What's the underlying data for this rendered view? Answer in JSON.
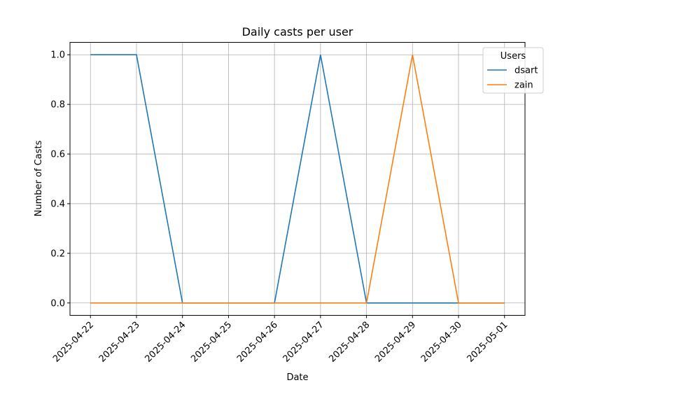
{
  "chart_data": {
    "type": "line",
    "title": "Daily casts per user",
    "xlabel": "Date",
    "ylabel": "Number of Casts",
    "x": [
      "2025-04-22",
      "2025-04-23",
      "2025-04-24",
      "2025-04-25",
      "2025-04-26",
      "2025-04-27",
      "2025-04-28",
      "2025-04-29",
      "2025-04-30",
      "2025-05-01"
    ],
    "ylim": [
      -0.05,
      1.05
    ],
    "yticks": [
      "0.0",
      "0.2",
      "0.4",
      "0.6",
      "0.8",
      "1.0"
    ],
    "grid": true,
    "legend": {
      "title": "Users",
      "placement": "top-right"
    },
    "series": [
      {
        "name": "dsart",
        "color": "#1f77b4",
        "values": [
          1,
          1,
          0,
          0,
          0,
          1,
          0,
          0,
          0,
          0
        ]
      },
      {
        "name": "zain",
        "color": "#ff7f0e",
        "values": [
          0,
          0,
          0,
          0,
          0,
          0,
          0,
          1,
          0,
          0
        ]
      }
    ]
  }
}
